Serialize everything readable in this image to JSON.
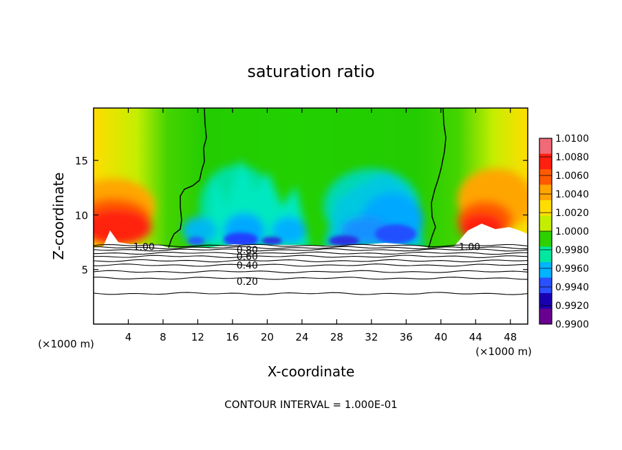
{
  "chart_data": {
    "type": "heatmap",
    "title": "saturation ratio",
    "xlabel": "X-coordinate",
    "ylabel": "Z-coordinate",
    "x_unit": "(×1000 m)",
    "y_unit": "",
    "xlim": [
      0,
      50
    ],
    "ylim": [
      0,
      19.8
    ],
    "x_ticks": [
      4,
      8,
      12,
      16,
      20,
      24,
      28,
      32,
      36,
      40,
      44,
      48
    ],
    "y_ticks": [
      5,
      10,
      15
    ],
    "contour_interval_text": "CONTOUR INTERVAL = 1.000E-01",
    "colorbar": {
      "levels": [
        "1.0100",
        "1.0080",
        "1.0060",
        "1.0040",
        "1.0020",
        "1.0000",
        "0.9980",
        "0.9960",
        "0.9940",
        "0.9920",
        "0.9900"
      ],
      "colors": [
        "#f06a78",
        "#ff2010",
        "#ff5a00",
        "#ffa500",
        "#ffdd00",
        "#c4ee00",
        "#2ed000",
        "#00e8a0",
        "#00b4ff",
        "#2a50ff",
        "#1a00b0",
        "#6a0090"
      ]
    },
    "contour_labels": [
      {
        "text": "1.00",
        "x": 5.8,
        "y": 7.1
      },
      {
        "text": "1.00",
        "x": 43.3,
        "y": 7.1
      },
      {
        "text": "0.80",
        "x": 17.7,
        "y": 6.8
      },
      {
        "text": "0.60",
        "x": 17.7,
        "y": 6.2
      },
      {
        "text": "0.40",
        "x": 17.7,
        "y": 5.4
      },
      {
        "text": "0.20",
        "x": 17.7,
        "y": 3.9
      }
    ],
    "contour_lines": [
      {
        "level": 1.0,
        "z": 7.2
      },
      {
        "level": 0.9,
        "z": 7.0
      },
      {
        "level": 0.8,
        "z": 6.8
      },
      {
        "level": 0.7,
        "z": 6.5
      },
      {
        "level": 0.6,
        "z": 6.2
      },
      {
        "level": 0.5,
        "z": 5.8
      },
      {
        "level": 0.4,
        "z": 5.4
      },
      {
        "level": 0.3,
        "z": 4.8
      },
      {
        "level": 0.2,
        "z": 4.2
      },
      {
        "level": 0.1,
        "z": 2.8
      }
    ]
  }
}
